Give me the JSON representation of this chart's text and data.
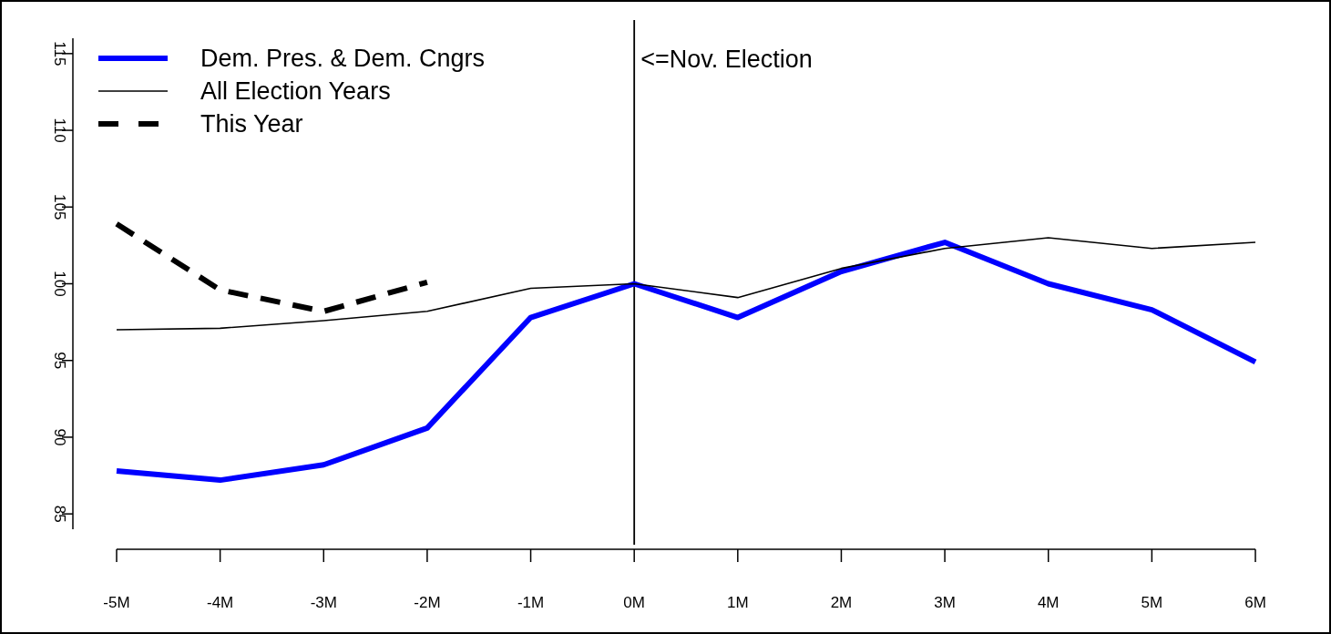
{
  "chart_data": {
    "type": "line",
    "x": [
      -5,
      -4,
      -3,
      -2,
      -1,
      0,
      1,
      2,
      3,
      4,
      5,
      6
    ],
    "xlim": [
      -5,
      6
    ],
    "xticks": [
      {
        "value": -5,
        "label": "-5M"
      },
      {
        "value": -4,
        "label": "-4M"
      },
      {
        "value": -3,
        "label": "-3M"
      },
      {
        "value": -2,
        "label": "-2M"
      },
      {
        "value": -1,
        "label": "-1M"
      },
      {
        "value": 0,
        "label": "0M"
      },
      {
        "value": 1,
        "label": "1M"
      },
      {
        "value": 2,
        "label": "2M"
      },
      {
        "value": 3,
        "label": "3M"
      },
      {
        "value": 4,
        "label": "4M"
      },
      {
        "value": 5,
        "label": "5M"
      },
      {
        "value": 6,
        "label": "6M"
      }
    ],
    "ylim": [
      84,
      116
    ],
    "yticks": [
      85,
      90,
      95,
      100,
      105,
      110,
      115
    ],
    "series": [
      {
        "name": "Dem. Pres. & Dem. Cngrs",
        "color": "#0000ff",
        "line_style": "solid",
        "values": [
          87.8,
          87.2,
          88.2,
          90.6,
          97.8,
          100,
          97.8,
          100.8,
          102.7,
          100,
          98.3,
          94.9
        ]
      },
      {
        "name": "All Election Years",
        "color": "#000000",
        "line_style": "solid",
        "values": [
          97.0,
          97.1,
          97.6,
          98.2,
          99.7,
          100,
          99.1,
          101,
          102.3,
          103,
          102.3,
          102.7
        ]
      },
      {
        "name": "This Year",
        "color": "#000000",
        "line_style": "dashed",
        "values": [
          103.9,
          99.6,
          98.2,
          100.1,
          null,
          null,
          null,
          null,
          null,
          null,
          null,
          null
        ]
      }
    ],
    "ref_lines": [
      {
        "axis": "x",
        "value": 0,
        "label": "<=Nov. Election",
        "color": "#000000"
      }
    ],
    "legend": "top left",
    "grid": false
  }
}
